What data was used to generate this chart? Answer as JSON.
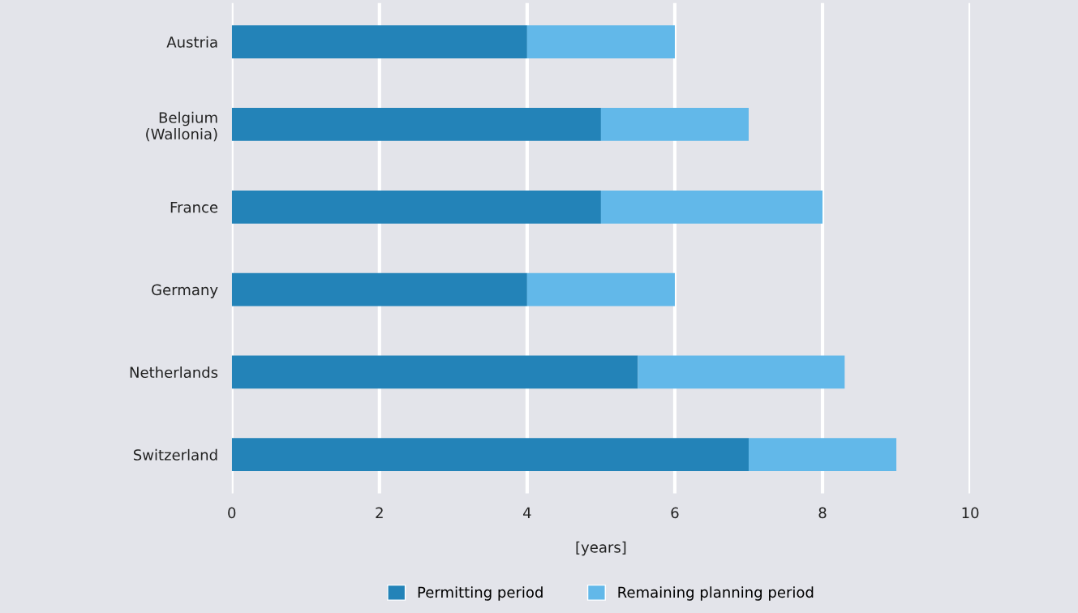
{
  "chart_data": {
    "type": "bar",
    "orientation": "horizontal",
    "stacked": true,
    "xlabel": "[years]",
    "categories": [
      "Austria",
      "Belgium\n(Wallonia)",
      "France",
      "Germany",
      "Netherlands",
      "Switzerland"
    ],
    "series": [
      {
        "name": "Permitting period",
        "color": "#2383b8",
        "values": [
          4,
          5,
          5,
          4,
          5.5,
          7
        ]
      },
      {
        "name": "Remaining planning period",
        "color": "#62b8e9",
        "values": [
          2,
          2,
          3,
          2,
          2.8,
          2
        ]
      }
    ],
    "xlim": [
      0,
      10
    ],
    "xticks": [
      0,
      2,
      4,
      6,
      8,
      10
    ],
    "grid": "x",
    "legend": "bottom"
  }
}
